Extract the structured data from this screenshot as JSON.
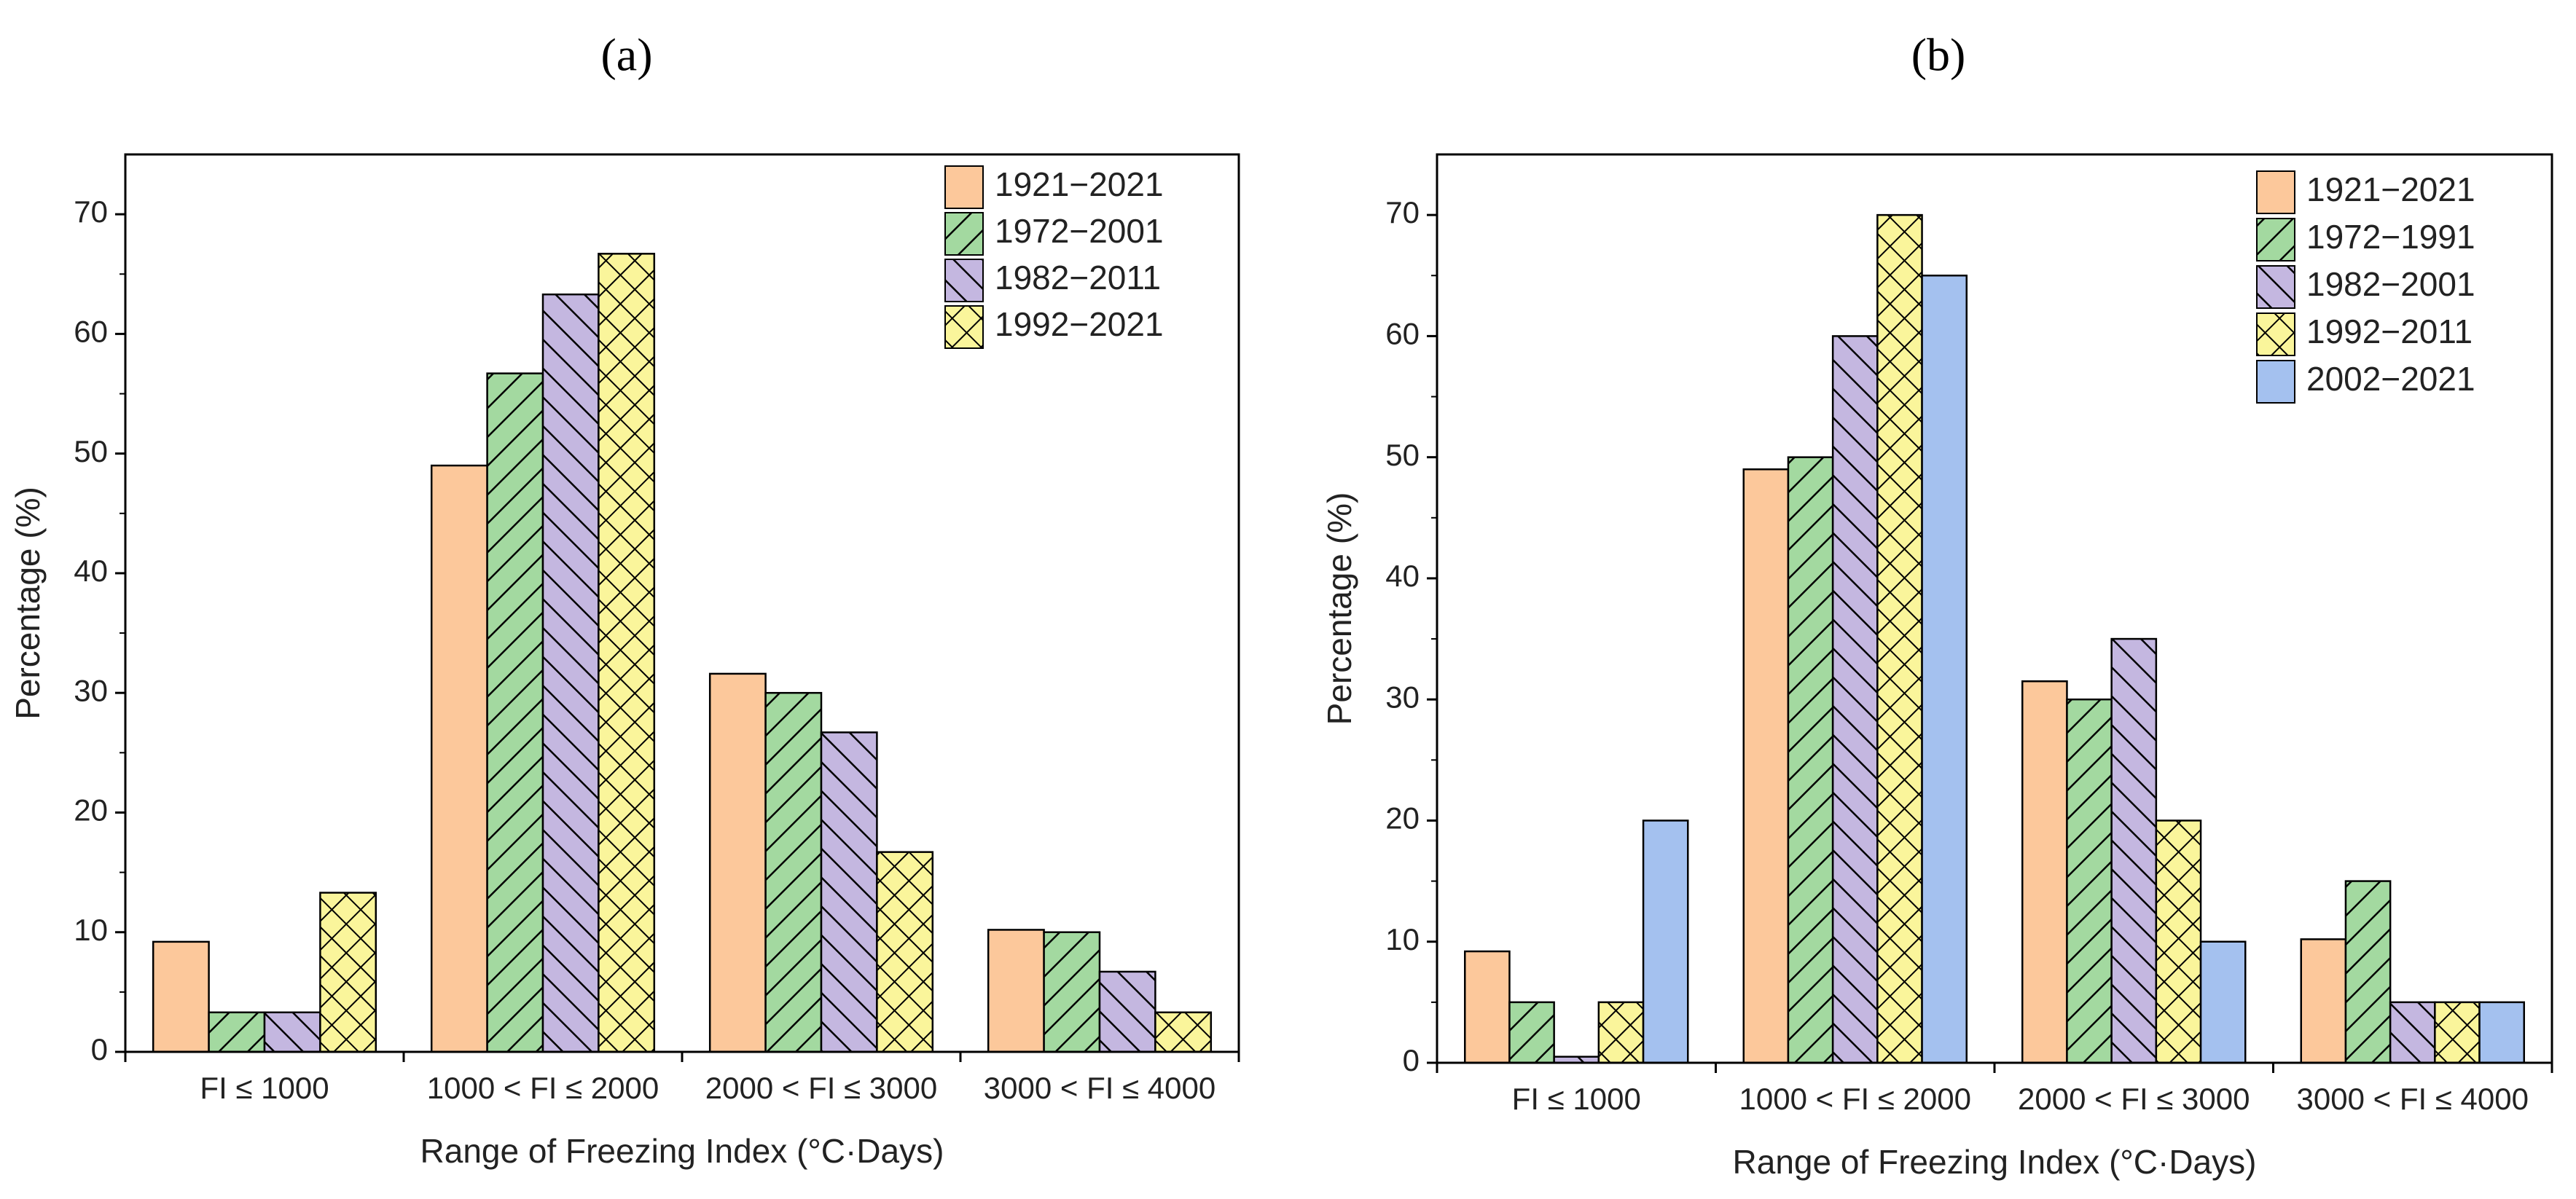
{
  "chart_data": [
    {
      "type": "bar",
      "panel_label": "(a)",
      "title": "",
      "xlabel": "Range of Freezing Index (°C·Days)",
      "ylabel": "Percentage (%)",
      "ylim": [
        0,
        75
      ],
      "yticks": [
        0,
        10,
        20,
        30,
        40,
        50,
        60,
        70
      ],
      "categories": [
        "FI  ≤ 1000",
        "1000 < FI ≤ 2000",
        "2000 < FI ≤ 3000",
        "3000 < FI ≤ 4000"
      ],
      "legend_position": "top-right",
      "series": [
        {
          "name": "1921−2021",
          "color": "#fcc89b",
          "pattern": "none",
          "values": [
            9.2,
            49.0,
            31.6,
            10.2
          ]
        },
        {
          "name": "1972−2001",
          "color": "#a3d9a0",
          "pattern": "diag-up",
          "values": [
            3.3,
            56.7,
            30.0,
            10.0
          ]
        },
        {
          "name": "1982−2011",
          "color": "#c4b7e0",
          "pattern": "diag-down",
          "values": [
            3.3,
            63.3,
            26.7,
            6.7
          ]
        },
        {
          "name": "1992−2021",
          "color": "#faf59b",
          "pattern": "cross",
          "values": [
            13.3,
            66.7,
            16.7,
            3.3
          ]
        }
      ]
    },
    {
      "type": "bar",
      "panel_label": "(b)",
      "title": "",
      "xlabel": "Range of Freezing Index (°C·Days)",
      "ylabel": "Percentage (%)",
      "ylim": [
        0,
        75
      ],
      "yticks": [
        0,
        10,
        20,
        30,
        40,
        50,
        60,
        70
      ],
      "categories": [
        "FI  ≤ 1000",
        "1000 < FI ≤ 2000",
        "2000 < FI ≤ 3000",
        "3000 < FI ≤ 4000"
      ],
      "legend_position": "top-right",
      "series": [
        {
          "name": "1921−2021",
          "color": "#fcc89b",
          "pattern": "none",
          "values": [
            9.2,
            49.0,
            31.5,
            10.2
          ]
        },
        {
          "name": "1972−1991",
          "color": "#a3d9a0",
          "pattern": "diag-up",
          "values": [
            5.0,
            50.0,
            30.0,
            15.0
          ]
        },
        {
          "name": "1982−2001",
          "color": "#c4b7e0",
          "pattern": "diag-down",
          "values": [
            0.5,
            60.0,
            35.0,
            5.0
          ]
        },
        {
          "name": "1992−2011",
          "color": "#faf59b",
          "pattern": "cross",
          "values": [
            5.0,
            70.0,
            20.0,
            5.0
          ]
        },
        {
          "name": "2002−2021",
          "color": "#a4c1ef",
          "pattern": "none",
          "values": [
            20.0,
            65.0,
            10.0,
            5.0
          ]
        }
      ]
    }
  ]
}
